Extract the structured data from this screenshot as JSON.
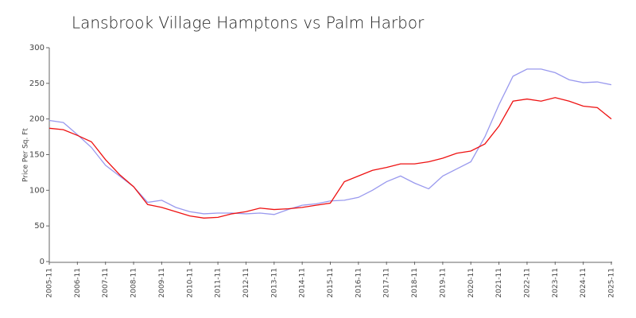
{
  "chart_data": {
    "type": "line",
    "title": "Lansbrook Village Hamptons vs Palm Harbor",
    "ylabel": "Price Per Sq. Ft",
    "x": [
      "2005-11",
      "2006-05",
      "2006-11",
      "2007-05",
      "2007-11",
      "2008-05",
      "2008-11",
      "2009-05",
      "2009-11",
      "2010-05",
      "2010-11",
      "2011-05",
      "2011-11",
      "2012-05",
      "2012-11",
      "2013-05",
      "2013-11",
      "2014-05",
      "2014-11",
      "2015-05",
      "2015-11",
      "2016-05",
      "2016-11",
      "2017-05",
      "2017-11",
      "2018-05",
      "2018-11",
      "2019-05",
      "2019-11",
      "2020-05",
      "2020-11",
      "2021-05",
      "2021-11",
      "2022-05",
      "2022-11",
      "2023-05",
      "2023-11",
      "2024-05",
      "2024-11",
      "2025-05",
      "2025-11"
    ],
    "series": [
      {
        "color": "#9999ee",
        "values": [
          198,
          195,
          178,
          160,
          135,
          120,
          105,
          83,
          86,
          76,
          70,
          67,
          68,
          68,
          67,
          68,
          66,
          73,
          79,
          81,
          85,
          86,
          90,
          100,
          112,
          120,
          110,
          102,
          120,
          130,
          140,
          175,
          220,
          260,
          270,
          270,
          265,
          255,
          251,
          252,
          248
        ]
      },
      {
        "color": "#ee1111",
        "values": [
          187,
          185,
          177,
          168,
          143,
          122,
          105,
          80,
          76,
          70,
          64,
          61,
          62,
          67,
          70,
          75,
          73,
          74,
          76,
          79,
          82,
          112,
          120,
          128,
          132,
          137,
          137,
          140,
          145,
          152,
          155,
          165,
          190,
          225,
          228,
          225,
          230,
          225,
          218,
          216,
          200
        ]
      }
    ],
    "xticks": [
      "2005-11",
      "2006-11",
      "2007-11",
      "2008-11",
      "2009-11",
      "2010-11",
      "2011-11",
      "2012-11",
      "2013-11",
      "2014-11",
      "2015-11",
      "2016-11",
      "2017-11",
      "2018-11",
      "2019-11",
      "2020-11",
      "2021-11",
      "2022-11",
      "2023-11",
      "2024-11",
      "2025-11"
    ],
    "ylim": [
      0,
      300
    ],
    "yticks": [
      0,
      50,
      100,
      150,
      200,
      250,
      300
    ],
    "grid": false
  }
}
